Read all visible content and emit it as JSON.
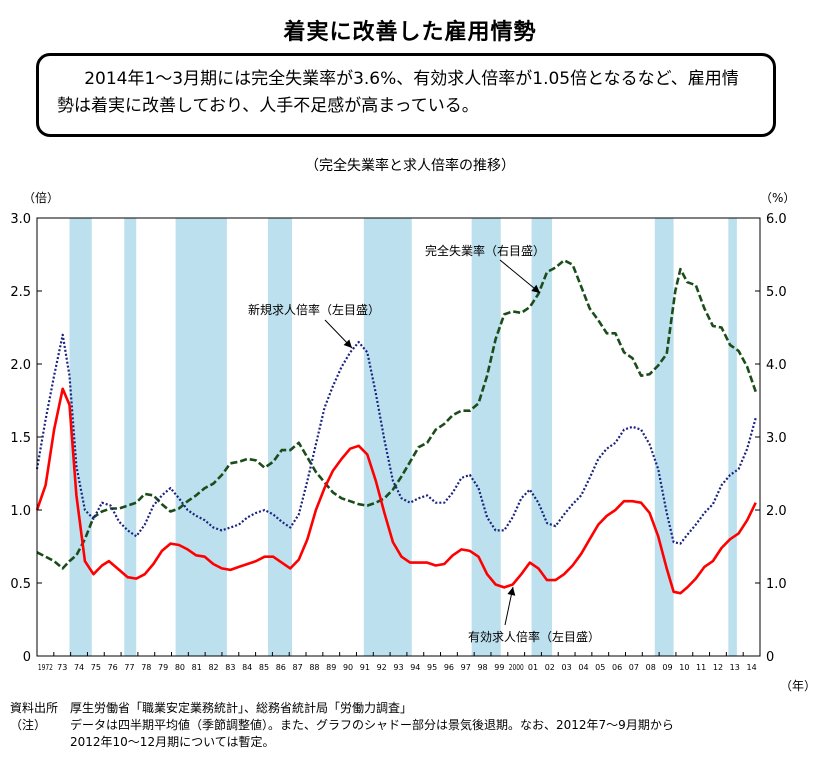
{
  "title": "着実に改善した雇用情勢",
  "summary": "2014年1～3月期には完全失業率が3.6%、有効求人倍率が1.05倍となるなど、雇用情勢は着実に改善しており、人手不足感が高まっている。",
  "notes": {
    "source_label": "資料出所",
    "source_text": "厚生労働省「職業安定業務統計」、総務省統計局「労働力調査」",
    "note_label": "（注）",
    "note_line1": "データは四半期平均値（季節調整値）。また、グラフのシャドー部分は景気後退期。なお、2012年7～9月期から",
    "note_line2": "2012年10～12月期については暫定。"
  },
  "chart_data": {
    "type": "line",
    "title": "（完全失業率と求人倍率の推移）",
    "left_axis_unit": "（倍）",
    "right_axis_unit": "（%）",
    "x_axis_unit": "（年）",
    "left_ylim": [
      0,
      3.0
    ],
    "right_ylim": [
      0,
      6.0
    ],
    "left_ticks": [
      "0",
      "0.5",
      "1.0",
      "1.5",
      "2.0",
      "2.5",
      "3.0"
    ],
    "right_ticks": [
      "0",
      "1.0",
      "2.0",
      "3.0",
      "4.0",
      "5.0",
      "6.0"
    ],
    "x_range": [
      1972,
      2014.25
    ],
    "year_labels": [
      "1972",
      "73",
      "74",
      "75",
      "76",
      "77",
      "78",
      "79",
      "80",
      "81",
      "82",
      "83",
      "84",
      "85",
      "86",
      "87",
      "88",
      "89",
      "90",
      "91",
      "92",
      "93",
      "94",
      "95",
      "96",
      "97",
      "98",
      "99",
      "2000",
      "01",
      "02",
      "03",
      "04",
      "05",
      "06",
      "07",
      "08",
      "09",
      "10",
      "11",
      "12",
      "13",
      "14"
    ],
    "recessions": [
      [
        1973.9,
        1975.2
      ],
      [
        1977.1,
        1977.8
      ],
      [
        1980.1,
        1983.1
      ],
      [
        1985.5,
        1986.9
      ],
      [
        1991.1,
        1993.9
      ],
      [
        1997.4,
        1999.1
      ],
      [
        2000.9,
        2002.1
      ],
      [
        2008.1,
        2009.2
      ],
      [
        2012.4,
        2012.9
      ]
    ],
    "annotations": [
      {
        "text": "完全失業率（右目盛）",
        "series": "unemployment"
      },
      {
        "text": "新規求人倍率（左目盛）",
        "series": "new_openings"
      },
      {
        "text": "有効求人倍率（左目盛）",
        "series": "active_openings"
      }
    ],
    "series": [
      {
        "id": "active_openings",
        "name": "有効求人倍率（左目盛）",
        "axis": "left",
        "color": "#ff0000",
        "style": "solid",
        "points": [
          [
            1972.0,
            1.0
          ],
          [
            1972.5,
            1.17
          ],
          [
            1973.0,
            1.55
          ],
          [
            1973.5,
            1.83
          ],
          [
            1973.9,
            1.72
          ],
          [
            1974.3,
            1.1
          ],
          [
            1974.8,
            0.65
          ],
          [
            1975.3,
            0.56
          ],
          [
            1975.8,
            0.62
          ],
          [
            1976.2,
            0.65
          ],
          [
            1976.7,
            0.6
          ],
          [
            1977.3,
            0.54
          ],
          [
            1977.8,
            0.53
          ],
          [
            1978.3,
            0.56
          ],
          [
            1978.8,
            0.63
          ],
          [
            1979.3,
            0.72
          ],
          [
            1979.8,
            0.77
          ],
          [
            1980.3,
            0.76
          ],
          [
            1980.8,
            0.73
          ],
          [
            1981.3,
            0.69
          ],
          [
            1981.8,
            0.68
          ],
          [
            1982.3,
            0.63
          ],
          [
            1982.8,
            0.6
          ],
          [
            1983.3,
            0.59
          ],
          [
            1983.8,
            0.61
          ],
          [
            1984.3,
            0.63
          ],
          [
            1984.8,
            0.65
          ],
          [
            1985.3,
            0.68
          ],
          [
            1985.8,
            0.68
          ],
          [
            1986.3,
            0.64
          ],
          [
            1986.8,
            0.6
          ],
          [
            1987.3,
            0.66
          ],
          [
            1987.8,
            0.8
          ],
          [
            1988.3,
            1.0
          ],
          [
            1988.8,
            1.15
          ],
          [
            1989.3,
            1.27
          ],
          [
            1989.8,
            1.35
          ],
          [
            1990.3,
            1.42
          ],
          [
            1990.8,
            1.44
          ],
          [
            1991.3,
            1.38
          ],
          [
            1991.8,
            1.2
          ],
          [
            1992.3,
            0.98
          ],
          [
            1992.8,
            0.78
          ],
          [
            1993.3,
            0.68
          ],
          [
            1993.8,
            0.64
          ],
          [
            1994.3,
            0.64
          ],
          [
            1994.8,
            0.64
          ],
          [
            1995.3,
            0.62
          ],
          [
            1995.8,
            0.63
          ],
          [
            1996.3,
            0.69
          ],
          [
            1996.8,
            0.73
          ],
          [
            1997.3,
            0.72
          ],
          [
            1997.8,
            0.68
          ],
          [
            1998.3,
            0.56
          ],
          [
            1998.8,
            0.49
          ],
          [
            1999.3,
            0.47
          ],
          [
            1999.8,
            0.49
          ],
          [
            2000.3,
            0.56
          ],
          [
            2000.8,
            0.64
          ],
          [
            2001.3,
            0.6
          ],
          [
            2001.8,
            0.52
          ],
          [
            2002.3,
            0.52
          ],
          [
            2002.8,
            0.56
          ],
          [
            2003.3,
            0.62
          ],
          [
            2003.8,
            0.7
          ],
          [
            2004.3,
            0.8
          ],
          [
            2004.8,
            0.9
          ],
          [
            2005.3,
            0.96
          ],
          [
            2005.8,
            1.0
          ],
          [
            2006.3,
            1.06
          ],
          [
            2006.8,
            1.06
          ],
          [
            2007.3,
            1.05
          ],
          [
            2007.8,
            0.98
          ],
          [
            2008.3,
            0.82
          ],
          [
            2008.8,
            0.6
          ],
          [
            2009.2,
            0.44
          ],
          [
            2009.6,
            0.43
          ],
          [
            2010.0,
            0.47
          ],
          [
            2010.5,
            0.53
          ],
          [
            2011.0,
            0.61
          ],
          [
            2011.5,
            0.65
          ],
          [
            2012.0,
            0.74
          ],
          [
            2012.5,
            0.8
          ],
          [
            2013.0,
            0.84
          ],
          [
            2013.5,
            0.93
          ],
          [
            2014.0,
            1.05
          ]
        ]
      },
      {
        "id": "new_openings",
        "name": "新規求人倍率（左目盛）",
        "axis": "left",
        "color": "#1a237e",
        "style": "dotted",
        "points": [
          [
            1972.0,
            1.28
          ],
          [
            1972.5,
            1.62
          ],
          [
            1973.0,
            1.92
          ],
          [
            1973.5,
            2.2
          ],
          [
            1973.9,
            1.92
          ],
          [
            1974.3,
            1.3
          ],
          [
            1974.8,
            1.0
          ],
          [
            1975.3,
            0.94
          ],
          [
            1975.8,
            1.05
          ],
          [
            1976.3,
            1.03
          ],
          [
            1976.8,
            0.92
          ],
          [
            1977.3,
            0.86
          ],
          [
            1977.8,
            0.82
          ],
          [
            1978.3,
            0.9
          ],
          [
            1978.8,
            1.03
          ],
          [
            1979.3,
            1.1
          ],
          [
            1979.8,
            1.15
          ],
          [
            1980.3,
            1.08
          ],
          [
            1980.8,
            1.0
          ],
          [
            1981.3,
            0.96
          ],
          [
            1981.8,
            0.93
          ],
          [
            1982.3,
            0.88
          ],
          [
            1982.8,
            0.86
          ],
          [
            1983.3,
            0.88
          ],
          [
            1983.8,
            0.9
          ],
          [
            1984.3,
            0.95
          ],
          [
            1984.8,
            0.98
          ],
          [
            1985.3,
            1.0
          ],
          [
            1985.8,
            0.97
          ],
          [
            1986.3,
            0.92
          ],
          [
            1986.8,
            0.88
          ],
          [
            1987.3,
            0.97
          ],
          [
            1987.8,
            1.2
          ],
          [
            1988.3,
            1.45
          ],
          [
            1988.8,
            1.7
          ],
          [
            1989.3,
            1.85
          ],
          [
            1989.8,
            1.98
          ],
          [
            1990.3,
            2.08
          ],
          [
            1990.8,
            2.15
          ],
          [
            1991.3,
            2.08
          ],
          [
            1991.8,
            1.8
          ],
          [
            1992.3,
            1.48
          ],
          [
            1992.8,
            1.2
          ],
          [
            1993.3,
            1.08
          ],
          [
            1993.8,
            1.05
          ],
          [
            1994.3,
            1.08
          ],
          [
            1994.8,
            1.1
          ],
          [
            1995.3,
            1.05
          ],
          [
            1995.8,
            1.05
          ],
          [
            1996.3,
            1.12
          ],
          [
            1996.8,
            1.22
          ],
          [
            1997.3,
            1.24
          ],
          [
            1997.8,
            1.15
          ],
          [
            1998.3,
            0.95
          ],
          [
            1998.8,
            0.86
          ],
          [
            1999.3,
            0.86
          ],
          [
            1999.8,
            0.95
          ],
          [
            2000.3,
            1.08
          ],
          [
            2000.8,
            1.14
          ],
          [
            2001.3,
            1.05
          ],
          [
            2001.8,
            0.91
          ],
          [
            2002.3,
            0.89
          ],
          [
            2002.8,
            0.97
          ],
          [
            2003.3,
            1.04
          ],
          [
            2003.8,
            1.1
          ],
          [
            2004.3,
            1.22
          ],
          [
            2004.8,
            1.35
          ],
          [
            2005.3,
            1.42
          ],
          [
            2005.8,
            1.46
          ],
          [
            2006.3,
            1.55
          ],
          [
            2006.8,
            1.57
          ],
          [
            2007.3,
            1.55
          ],
          [
            2007.8,
            1.45
          ],
          [
            2008.3,
            1.28
          ],
          [
            2008.8,
            0.98
          ],
          [
            2009.2,
            0.78
          ],
          [
            2009.6,
            0.77
          ],
          [
            2010.0,
            0.83
          ],
          [
            2010.5,
            0.9
          ],
          [
            2011.0,
            0.98
          ],
          [
            2011.5,
            1.04
          ],
          [
            2012.0,
            1.17
          ],
          [
            2012.5,
            1.24
          ],
          [
            2013.0,
            1.28
          ],
          [
            2013.5,
            1.42
          ],
          [
            2014.0,
            1.63
          ]
        ]
      },
      {
        "id": "unemployment",
        "name": "完全失業率（右目盛）",
        "axis": "right",
        "color": "#1b4d1b",
        "style": "dashed",
        "points": [
          [
            1972.0,
            1.42
          ],
          [
            1972.5,
            1.36
          ],
          [
            1973.0,
            1.3
          ],
          [
            1973.5,
            1.2
          ],
          [
            1973.9,
            1.3
          ],
          [
            1974.3,
            1.38
          ],
          [
            1974.8,
            1.6
          ],
          [
            1975.3,
            1.9
          ],
          [
            1975.8,
            1.98
          ],
          [
            1976.3,
            2.02
          ],
          [
            1976.8,
            2.02
          ],
          [
            1977.3,
            2.06
          ],
          [
            1977.8,
            2.1
          ],
          [
            1978.3,
            2.22
          ],
          [
            1978.8,
            2.2
          ],
          [
            1979.3,
            2.08
          ],
          [
            1979.8,
            1.98
          ],
          [
            1980.3,
            2.02
          ],
          [
            1980.8,
            2.12
          ],
          [
            1981.3,
            2.2
          ],
          [
            1981.8,
            2.3
          ],
          [
            1982.3,
            2.36
          ],
          [
            1982.8,
            2.48
          ],
          [
            1983.3,
            2.64
          ],
          [
            1983.8,
            2.66
          ],
          [
            1984.3,
            2.7
          ],
          [
            1984.8,
            2.68
          ],
          [
            1985.3,
            2.58
          ],
          [
            1985.8,
            2.66
          ],
          [
            1986.3,
            2.82
          ],
          [
            1986.8,
            2.82
          ],
          [
            1987.3,
            2.92
          ],
          [
            1987.8,
            2.72
          ],
          [
            1988.3,
            2.52
          ],
          [
            1988.8,
            2.38
          ],
          [
            1989.3,
            2.24
          ],
          [
            1989.8,
            2.16
          ],
          [
            1990.3,
            2.12
          ],
          [
            1990.8,
            2.08
          ],
          [
            1991.3,
            2.06
          ],
          [
            1991.8,
            2.1
          ],
          [
            1992.3,
            2.16
          ],
          [
            1992.8,
            2.28
          ],
          [
            1993.3,
            2.46
          ],
          [
            1993.8,
            2.66
          ],
          [
            1994.3,
            2.86
          ],
          [
            1994.8,
            2.92
          ],
          [
            1995.3,
            3.1
          ],
          [
            1995.8,
            3.18
          ],
          [
            1996.3,
            3.3
          ],
          [
            1996.8,
            3.36
          ],
          [
            1997.3,
            3.36
          ],
          [
            1997.8,
            3.46
          ],
          [
            1998.3,
            3.84
          ],
          [
            1998.8,
            4.34
          ],
          [
            1999.3,
            4.68
          ],
          [
            1999.8,
            4.72
          ],
          [
            2000.3,
            4.7
          ],
          [
            2000.8,
            4.78
          ],
          [
            2001.3,
            4.96
          ],
          [
            2001.8,
            5.26
          ],
          [
            2002.3,
            5.32
          ],
          [
            2002.8,
            5.42
          ],
          [
            2003.3,
            5.36
          ],
          [
            2003.8,
            5.06
          ],
          [
            2004.3,
            4.76
          ],
          [
            2004.8,
            4.6
          ],
          [
            2005.3,
            4.42
          ],
          [
            2005.8,
            4.42
          ],
          [
            2006.3,
            4.16
          ],
          [
            2006.8,
            4.08
          ],
          [
            2007.3,
            3.84
          ],
          [
            2007.8,
            3.86
          ],
          [
            2008.3,
            3.98
          ],
          [
            2008.8,
            4.14
          ],
          [
            2009.3,
            5.0
          ],
          [
            2009.6,
            5.3
          ],
          [
            2010.0,
            5.12
          ],
          [
            2010.5,
            5.08
          ],
          [
            2011.0,
            4.76
          ],
          [
            2011.5,
            4.52
          ],
          [
            2012.0,
            4.5
          ],
          [
            2012.5,
            4.26
          ],
          [
            2013.0,
            4.18
          ],
          [
            2013.5,
            3.96
          ],
          [
            2014.0,
            3.62
          ]
        ]
      }
    ]
  }
}
